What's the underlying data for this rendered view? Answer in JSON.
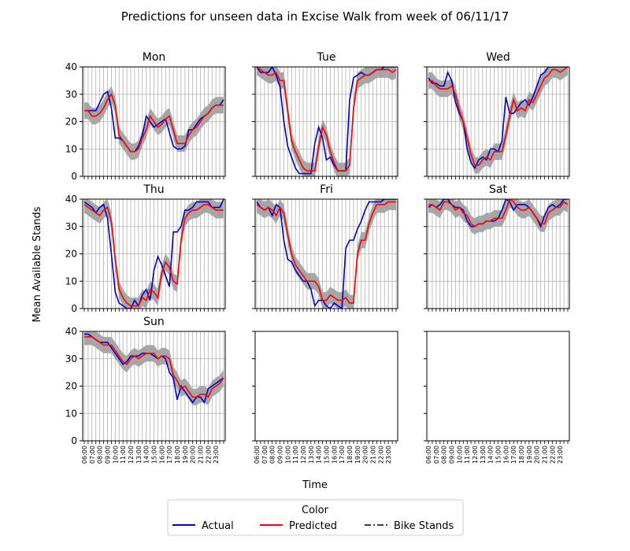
{
  "chart_data": {
    "type": "line",
    "title": "Predictions for unseen data in Excise Walk from week of 06/11/17",
    "xlabel": "Time",
    "ylabel": "Mean Available Stands",
    "ylim": [
      0,
      40
    ],
    "yticks": [
      0,
      10,
      20,
      30,
      40
    ],
    "x_ticks": [
      "06:00",
      "07:00",
      "08:00",
      "09:00",
      "10:00",
      "11:00",
      "12:00",
      "13:00",
      "14:00",
      "15:00",
      "16:00",
      "17:00",
      "18:00",
      "19:00",
      "20:00",
      "21:00",
      "22:00",
      "23:00"
    ],
    "grid": true,
    "band_color": "#a6a6a6",
    "legend": {
      "title": "Color",
      "placement": "bottom-center",
      "entries": [
        {
          "label": "Actual",
          "color": "#0000cc",
          "style": "solid"
        },
        {
          "label": "Predicted",
          "color": "#ff0000",
          "style": "solid"
        },
        {
          "label": "Bike Stands",
          "color": "#000000",
          "style": "dashdot"
        }
      ]
    },
    "panels": [
      {
        "day": "Mon",
        "actual": [
          24,
          24,
          24,
          24,
          27,
          30,
          31,
          25,
          14,
          14,
          13,
          11,
          9,
          9,
          11,
          15,
          22,
          20,
          18,
          19,
          20,
          21,
          16,
          11,
          10,
          10,
          11,
          17,
          17,
          19,
          21,
          22,
          23,
          25,
          26,
          26,
          28
        ],
        "predicted": [
          24,
          24,
          22,
          22,
          23,
          25,
          28,
          30,
          26,
          15,
          13,
          11,
          9,
          9,
          10,
          14,
          17,
          22,
          20,
          18,
          19,
          21,
          22,
          17,
          12,
          12,
          12,
          15,
          17,
          18,
          20,
          22,
          23,
          25,
          26,
          26,
          26
        ]
      },
      {
        "day": "Tue",
        "actual": [
          40,
          38,
          38,
          38,
          40,
          37,
          33,
          20,
          11,
          7,
          3,
          1,
          1,
          1,
          1,
          12,
          18,
          14,
          6,
          7,
          4,
          2,
          2,
          2,
          28,
          36,
          37,
          38,
          37,
          37,
          38,
          39,
          39,
          40,
          40,
          40,
          40
        ],
        "predicted": [
          40,
          39,
          38,
          37,
          37,
          38,
          35,
          35,
          24,
          13,
          9,
          6,
          3,
          2,
          2,
          2,
          11,
          18,
          15,
          9,
          5,
          2,
          2,
          2,
          4,
          25,
          35,
          36,
          37,
          37,
          38,
          39,
          39,
          39,
          39,
          38,
          39
        ]
      },
      {
        "day": "Wed",
        "actual": [
          36,
          34,
          34,
          33,
          33,
          38,
          35,
          27,
          23,
          20,
          10,
          5,
          3,
          6,
          7,
          6,
          10,
          10,
          9,
          13,
          29,
          23,
          23,
          25,
          27,
          28,
          26,
          29,
          33,
          37,
          38,
          40,
          40,
          40,
          40,
          40,
          40
        ],
        "predicted": [
          35,
          35,
          33,
          32,
          32,
          32,
          33,
          30,
          24,
          20,
          14,
          8,
          4,
          4,
          6,
          7,
          6,
          9,
          9,
          9,
          15,
          22,
          28,
          24,
          25,
          24,
          28,
          27,
          30,
          33,
          36,
          37,
          39,
          39,
          38,
          39,
          40
        ]
      },
      {
        "day": "Thu",
        "actual": [
          39,
          38,
          37,
          35,
          37,
          38,
          33,
          20,
          6,
          2,
          1,
          0,
          0,
          3,
          1,
          5,
          7,
          3,
          14,
          19,
          16,
          12,
          8,
          28,
          28,
          30,
          36,
          36,
          37,
          39,
          39,
          39,
          39,
          37,
          37,
          37,
          40
        ],
        "predicted": [
          38,
          37,
          36,
          35,
          34,
          36,
          37,
          32,
          18,
          7,
          4,
          2,
          1,
          1,
          1,
          4,
          3,
          7,
          6,
          4,
          13,
          17,
          15,
          10,
          9,
          25,
          33,
          35,
          36,
          36,
          37,
          38,
          38,
          37,
          36,
          36,
          36
        ]
      },
      {
        "day": "Fri",
        "actual": [
          39,
          37,
          36,
          37,
          34,
          38,
          37,
          25,
          18,
          17,
          14,
          12,
          10,
          10,
          7,
          1,
          3,
          3,
          1,
          0,
          2,
          1,
          0,
          22,
          25,
          25,
          29,
          32,
          36,
          39,
          39,
          39,
          39,
          40,
          40,
          40,
          40
        ],
        "predicted": [
          38,
          37,
          36,
          37,
          36,
          34,
          37,
          35,
          27,
          20,
          16,
          14,
          12,
          10,
          10,
          10,
          8,
          3,
          3,
          5,
          4,
          3,
          3,
          4,
          2,
          2,
          20,
          25,
          25,
          31,
          35,
          38,
          38,
          38,
          39,
          39,
          39
        ]
      },
      {
        "day": "Sat",
        "actual": [
          37,
          38,
          37,
          38,
          40,
          40,
          38,
          37,
          37,
          36,
          32,
          30,
          30,
          31,
          31,
          32,
          32,
          32,
          33,
          36,
          40,
          39,
          36,
          38,
          38,
          38,
          37,
          35,
          33,
          30,
          34,
          37,
          38,
          37,
          38,
          40,
          40
        ],
        "predicted": [
          38,
          38,
          37,
          36,
          39,
          39,
          38,
          36,
          37,
          35,
          34,
          31,
          30,
          31,
          31,
          32,
          32,
          33,
          33,
          33,
          36,
          40,
          39,
          37,
          36,
          36,
          37,
          35,
          33,
          31,
          31,
          35,
          36,
          37,
          37,
          39,
          38
        ]
      },
      {
        "day": "Sun",
        "actual": [
          39,
          39,
          38,
          37,
          36,
          36,
          36,
          34,
          32,
          30,
          28,
          29,
          31,
          31,
          31,
          32,
          32,
          32,
          31,
          30,
          31,
          30,
          25,
          23,
          15,
          20,
          18,
          16,
          14,
          16,
          16,
          14,
          19,
          20,
          21,
          22,
          23
        ],
        "predicted": [
          38,
          38,
          38,
          37,
          36,
          35,
          35,
          35,
          33,
          31,
          29,
          28,
          30,
          31,
          30,
          31,
          32,
          32,
          32,
          30,
          31,
          31,
          30,
          24,
          22,
          19,
          20,
          18,
          16,
          16,
          17,
          17,
          16,
          19,
          20,
          21,
          23
        ]
      },
      {
        "day": "",
        "actual": [],
        "predicted": []
      },
      {
        "day": "",
        "actual": [],
        "predicted": []
      }
    ]
  }
}
